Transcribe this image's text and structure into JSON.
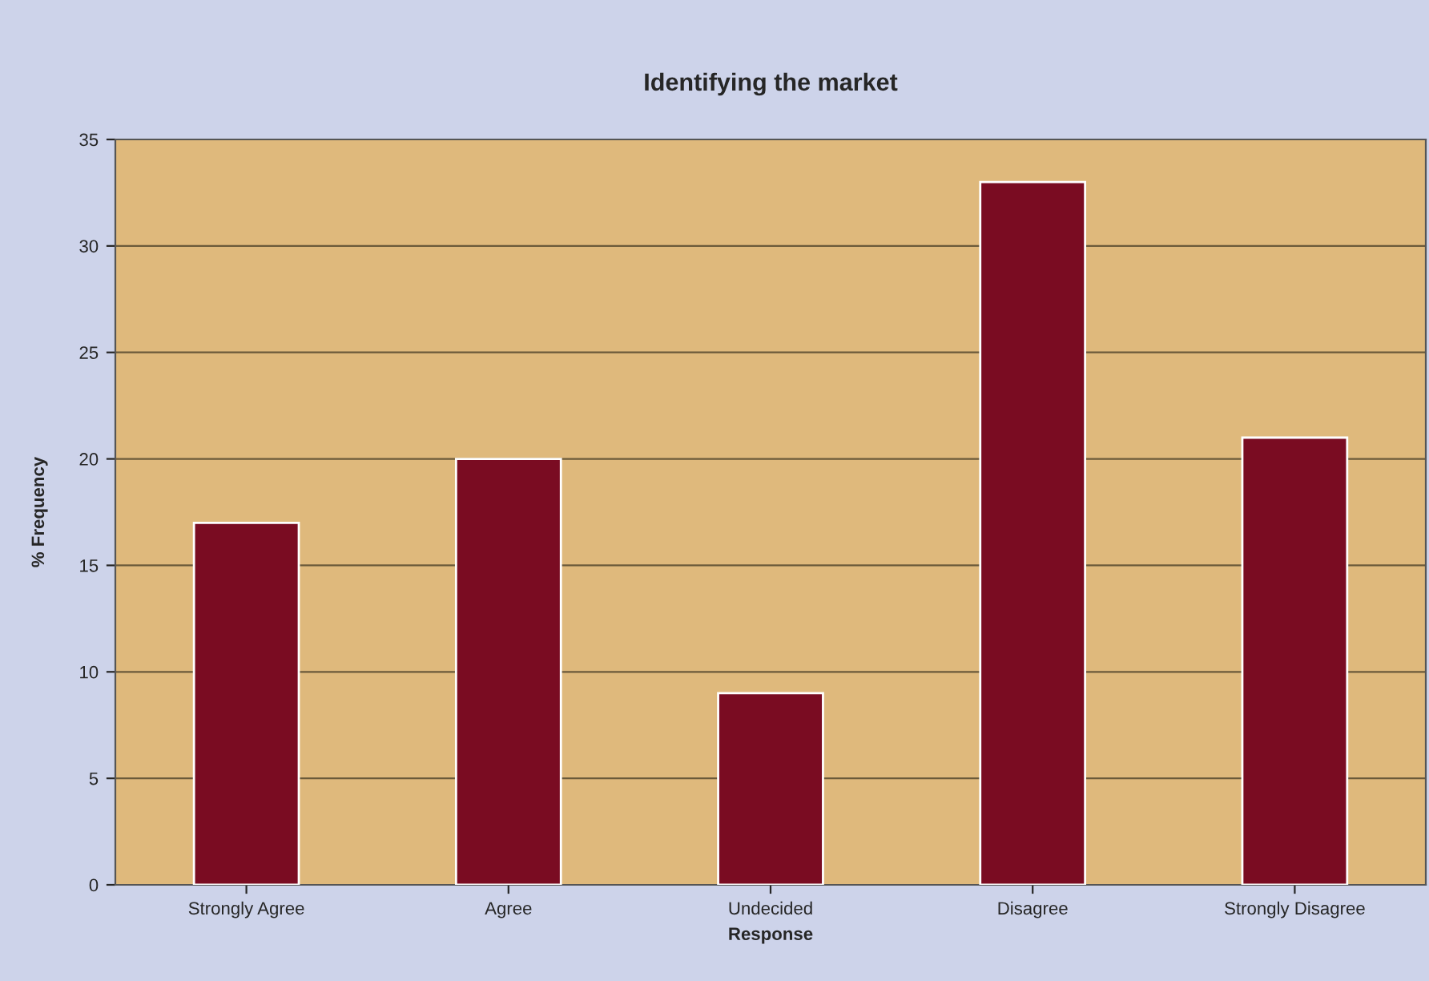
{
  "chart_data": {
    "type": "bar",
    "title": "Identifying the market",
    "xlabel": "Response",
    "ylabel": "% Frequency",
    "categories": [
      "Strongly Agree",
      "Agree",
      "Undecided",
      "Disagree",
      "Strongly Disagree"
    ],
    "values": [
      17,
      20,
      9,
      33,
      21
    ],
    "color": "#7a0c22",
    "ylim": [
      0,
      35
    ],
    "yticks": [
      0,
      5,
      10,
      15,
      20,
      25,
      30,
      35
    ],
    "grid": "y",
    "legend": false
  }
}
